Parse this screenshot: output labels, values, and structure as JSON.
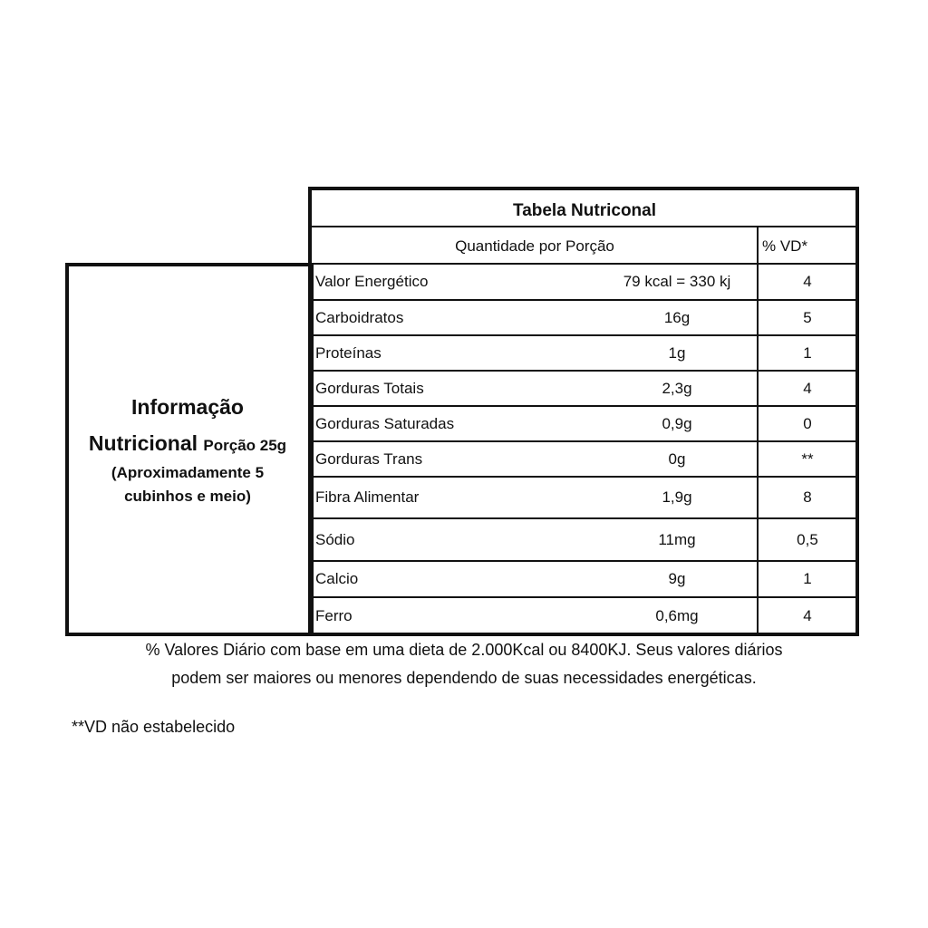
{
  "side_panel": {
    "title_line1": "Informação",
    "title_line2": "Nutricional",
    "portion": "Porção 25g",
    "portion_detail_line1": "(Aproximadamente 5",
    "portion_detail_line2": "cubinhos e meio)"
  },
  "table": {
    "title": "Tabela Nutriconal",
    "header_quantity": "Quantidade por Porção",
    "header_vd": "% VD*",
    "rows": [
      {
        "name": "Valor Energético",
        "amount": "79 kcal = 330 kj",
        "vd": "4"
      },
      {
        "name": "Carboidratos",
        "amount": "16g",
        "vd": "5"
      },
      {
        "name": "Proteínas",
        "amount": "1g",
        "vd": "1"
      },
      {
        "name": "Gorduras Totais",
        "amount": "2,3g",
        "vd": "4"
      },
      {
        "name": "Gorduras Saturadas",
        "amount": "0,9g",
        "vd": "0"
      },
      {
        "name": "Gorduras Trans",
        "amount": "0g",
        "vd": "**"
      },
      {
        "name": "Fibra Alimentar",
        "amount": "1,9g",
        "vd": "8"
      },
      {
        "name": "Sódio",
        "amount": "11mg",
        "vd": "0,5"
      },
      {
        "name": "Calcio",
        "amount": "9g",
        "vd": "1"
      },
      {
        "name": "Ferro",
        "amount": "0,6mg",
        "vd": "4"
      }
    ]
  },
  "footnotes": {
    "daily_values_line1": "% Valores Diário com base em uma dieta de 2.000Kcal ou 8400KJ. Seus valores diários",
    "daily_values_line2": "podem ser maiores ou menores dependendo de suas necessidades energéticas.",
    "not_established": "**VD não estabelecido"
  }
}
